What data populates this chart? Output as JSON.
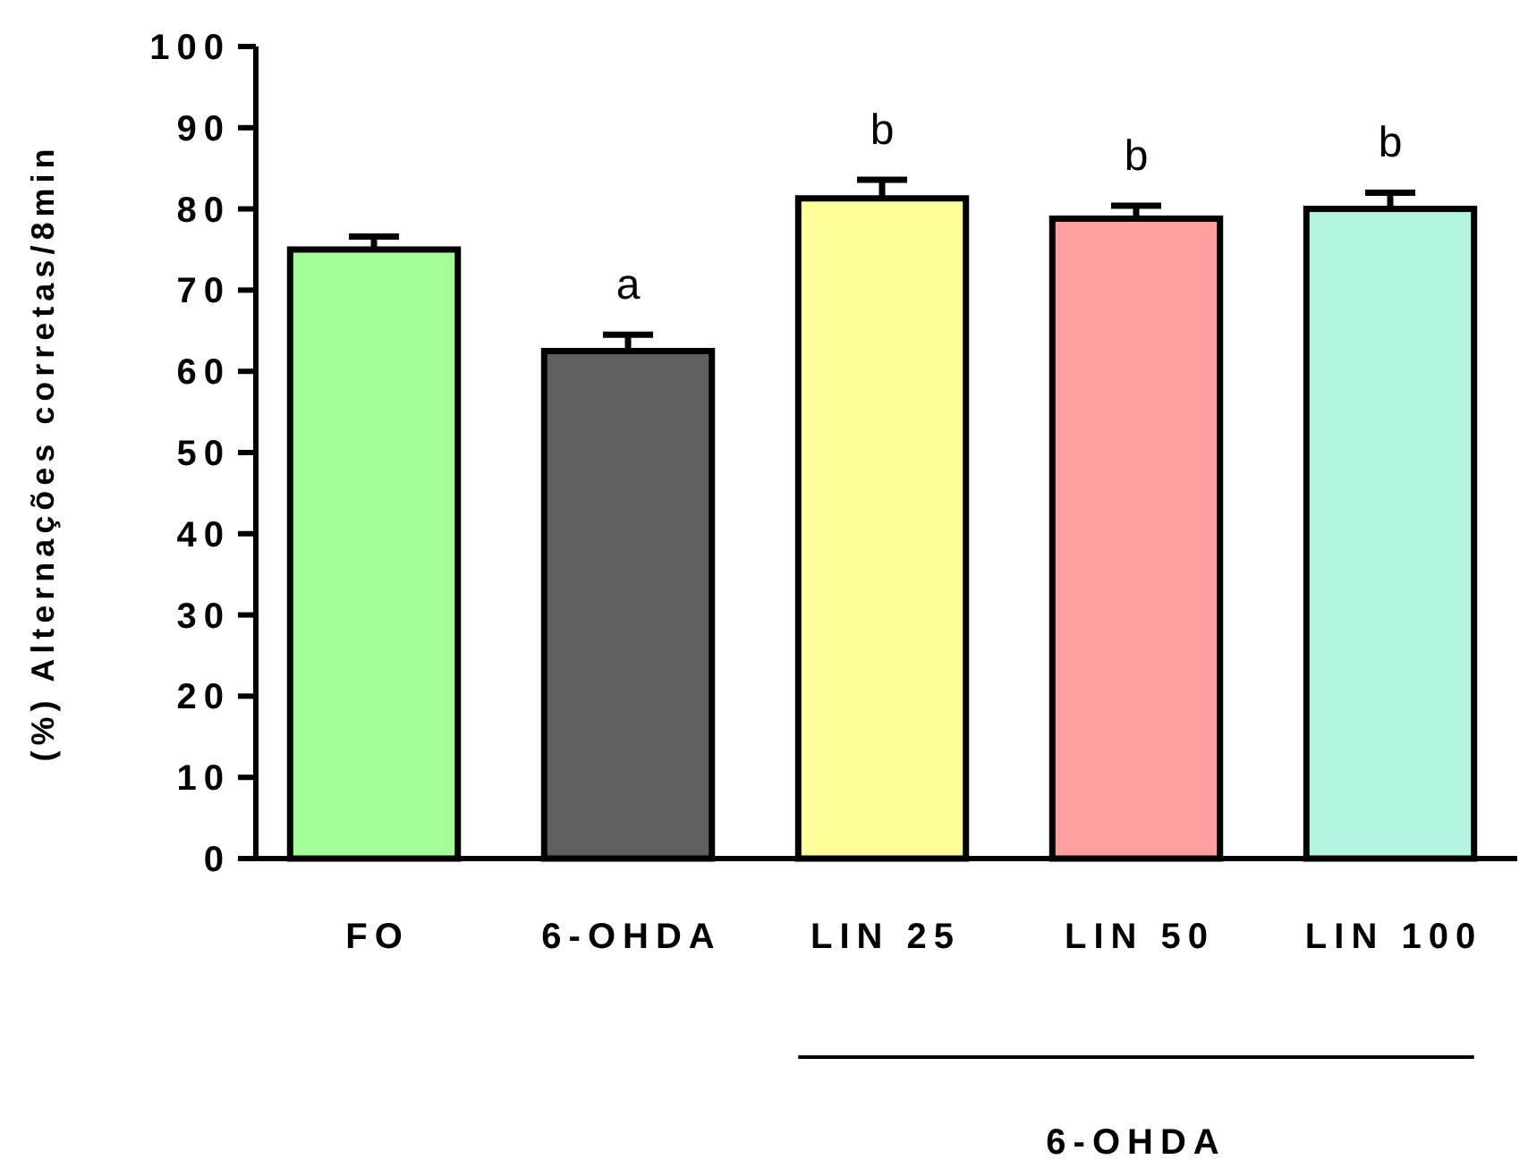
{
  "chart_data": {
    "type": "bar",
    "ylabel": "(%) Alternações corretas/8min",
    "categories": [
      "FO",
      "6-OHDA",
      "LIN 25",
      "LIN 50",
      "LIN 100"
    ],
    "values": [
      75,
      62.5,
      81.3,
      78.8,
      80
    ],
    "colors": [
      "#a3ff98",
      "#5f5f5f",
      "#ffff99",
      "#ff9f9f",
      "#b3f5e0"
    ],
    "errors": [
      [
        75,
        76.6
      ],
      [
        62.5,
        64.5
      ],
      [
        81.3,
        83.6
      ],
      [
        78.8,
        80.4
      ],
      [
        80,
        82
      ]
    ],
    "ylim": [
      0,
      100
    ],
    "yticks": [
      0,
      10,
      20,
      30,
      40,
      50,
      60,
      70,
      80,
      90,
      100
    ],
    "annotations": [
      {
        "text": "a",
        "x": "6-OHDA",
        "y": 64.5
      },
      {
        "text": "b",
        "x": "LIN 25",
        "y": 83.6
      },
      {
        "text": "b",
        "x": "LIN 50",
        "y": 80.4
      },
      {
        "text": "b",
        "x": "LIN 100",
        "y": 82
      },
      "6-OHDA"
    ]
  }
}
